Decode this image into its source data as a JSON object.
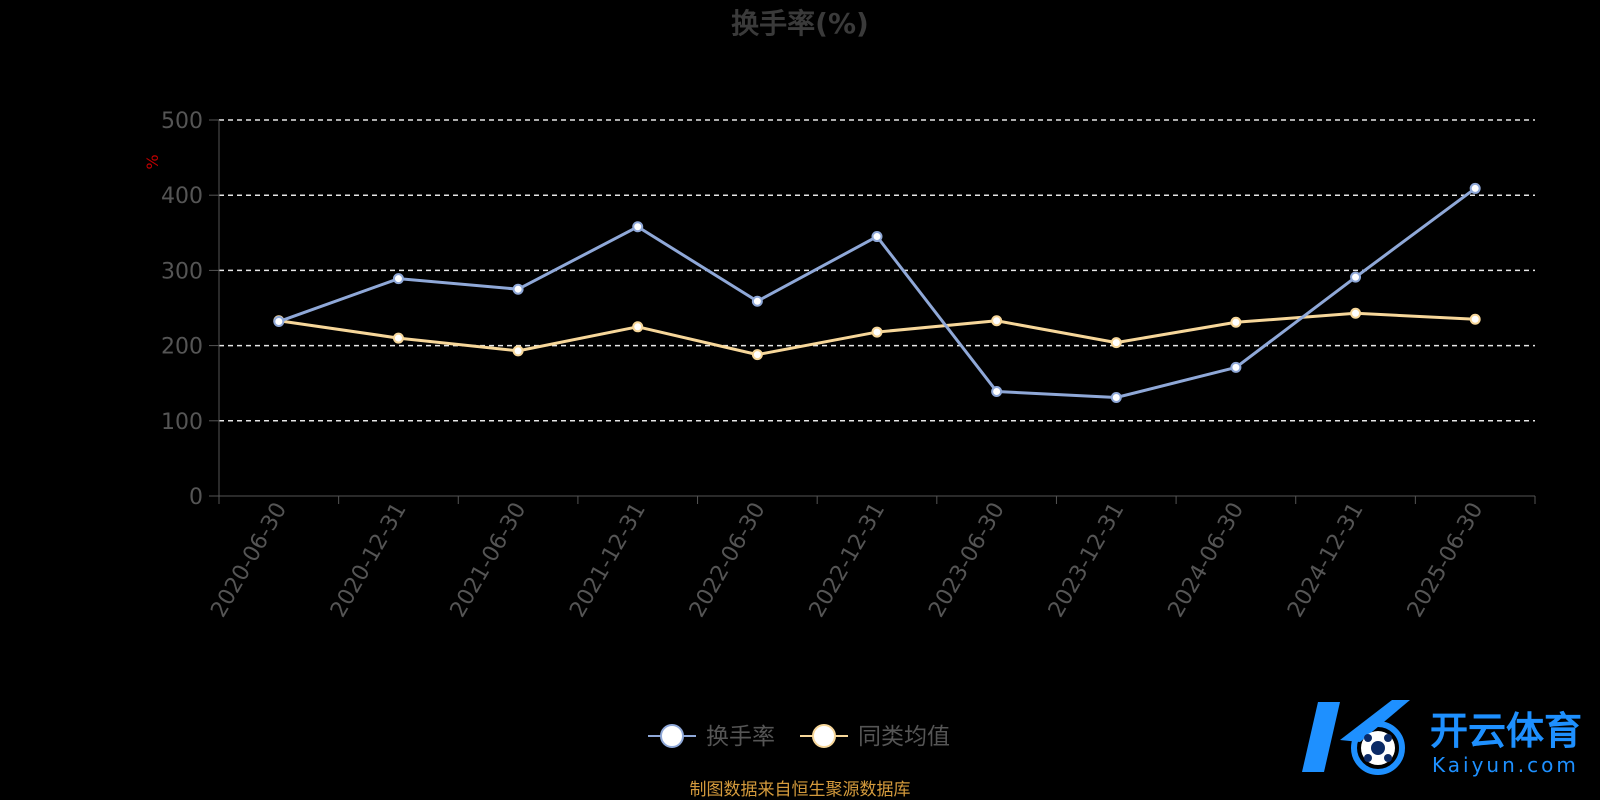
{
  "chart_data": {
    "type": "line",
    "title": "换手率(%)",
    "ylabel": "%",
    "xlabel": "",
    "ylim": [
      0,
      500
    ],
    "yticks": [
      0,
      100,
      200,
      300,
      400,
      500
    ],
    "grid": true,
    "legend_position": "bottom",
    "categories": [
      "2020-06-30",
      "2020-12-31",
      "2021-06-30",
      "2021-12-31",
      "2022-06-30",
      "2022-12-31",
      "2023-06-30",
      "2023-12-31",
      "2024-06-30",
      "2024-12-31",
      "2025-06-30"
    ],
    "series": [
      {
        "name": "换手率",
        "color": "#8fa8d8",
        "values": [
          232,
          289,
          275,
          358,
          259,
          345,
          139,
          131,
          171,
          291,
          409
        ]
      },
      {
        "name": "同类均值",
        "color": "#f7d79a",
        "values": [
          233,
          210,
          193,
          225,
          188,
          218,
          233,
          204,
          231,
          243,
          235
        ]
      }
    ]
  },
  "footer": {
    "source": "制图数据来自恒生聚源数据库"
  },
  "logo": {
    "text": "开云体育",
    "sub": "Kaiyun.com",
    "color": "#1e90ff"
  }
}
